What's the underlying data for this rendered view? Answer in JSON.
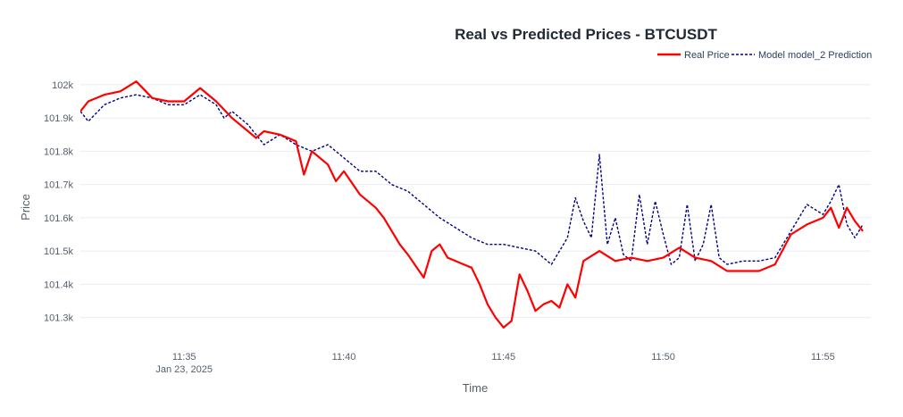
{
  "chart_data": {
    "type": "line",
    "title": "Real vs Predicted Prices - BTCUSDT",
    "xlabel": "Time",
    "ylabel": "Price",
    "x_ticks": [
      {
        "time": "11:35",
        "date": "Jan 23, 2025"
      },
      {
        "time": "11:40",
        "date": ""
      },
      {
        "time": "11:45",
        "date": ""
      },
      {
        "time": "11:50",
        "date": ""
      },
      {
        "time": "11:55",
        "date": ""
      }
    ],
    "y_ticks": [
      "101.3k",
      "101.4k",
      "101.5k",
      "101.6k",
      "101.7k",
      "101.8k",
      "101.9k",
      "102k"
    ],
    "xlim": [
      "11:31:45",
      "11:56:30"
    ],
    "ylim": [
      101240,
      102040
    ],
    "grid": true,
    "legend_position": "top-right",
    "series": [
      {
        "name": "Real Price",
        "color": "#ff0000",
        "dash": "solid",
        "x": [
          "11:31:45",
          "11:32:00",
          "11:32:30",
          "11:33:00",
          "11:33:30",
          "11:34:00",
          "11:34:30",
          "11:35:00",
          "11:35:30",
          "11:36:00",
          "11:36:30",
          "11:37:00",
          "11:37:15",
          "11:37:30",
          "11:38:00",
          "11:38:30",
          "11:38:45",
          "11:39:00",
          "11:39:30",
          "11:39:45",
          "11:40:00",
          "11:40:30",
          "11:41:00",
          "11:41:15",
          "11:41:45",
          "11:42:00",
          "11:42:30",
          "11:42:45",
          "11:43:00",
          "11:43:15",
          "11:43:45",
          "11:44:00",
          "11:44:15",
          "11:44:30",
          "11:44:45",
          "11:45:00",
          "11:45:15",
          "11:45:30",
          "11:45:45",
          "11:46:00",
          "11:46:15",
          "11:46:30",
          "11:46:45",
          "11:47:00",
          "11:47:15",
          "11:47:30",
          "11:48:00",
          "11:48:30",
          "11:49:00",
          "11:49:30",
          "11:50:00",
          "11:50:30",
          "11:51:00",
          "11:51:30",
          "11:52:00",
          "11:52:30",
          "11:53:00",
          "11:53:30",
          "11:54:00",
          "11:54:30",
          "11:55:00",
          "11:55:15",
          "11:55:30",
          "11:55:45",
          "11:56:00",
          "11:56:15"
        ],
        "values": [
          101920,
          101950,
          101970,
          101980,
          102010,
          101960,
          101950,
          101950,
          101990,
          101950,
          101900,
          101860,
          101840,
          101860,
          101850,
          101830,
          101730,
          101800,
          101760,
          101710,
          101740,
          101670,
          101630,
          101600,
          101520,
          101490,
          101420,
          101500,
          101520,
          101480,
          101460,
          101450,
          101400,
          101340,
          101300,
          101270,
          101290,
          101430,
          101380,
          101320,
          101340,
          101350,
          101330,
          101400,
          101360,
          101470,
          101500,
          101470,
          101480,
          101470,
          101480,
          101510,
          101480,
          101470,
          101440,
          101440,
          101440,
          101460,
          101550,
          101580,
          101600,
          101630,
          101570,
          101630,
          101590,
          101560
        ]
      },
      {
        "name": "Model model_2 Prediction",
        "color": "#000080",
        "dash": "dashed",
        "x": [
          "11:31:45",
          "11:32:00",
          "11:32:30",
          "11:33:00",
          "11:33:30",
          "11:34:00",
          "11:34:30",
          "11:35:00",
          "11:35:30",
          "11:36:00",
          "11:36:15",
          "11:36:30",
          "11:37:00",
          "11:37:30",
          "11:38:00",
          "11:38:30",
          "11:39:00",
          "11:39:30",
          "11:40:00",
          "11:40:30",
          "11:41:00",
          "11:41:30",
          "11:42:00",
          "11:42:30",
          "11:43:00",
          "11:43:30",
          "11:44:00",
          "11:44:30",
          "11:45:00",
          "11:45:30",
          "11:46:00",
          "11:46:30",
          "11:47:00",
          "11:47:15",
          "11:47:30",
          "11:47:45",
          "11:48:00",
          "11:48:15",
          "11:48:30",
          "11:48:45",
          "11:49:00",
          "11:49:15",
          "11:49:30",
          "11:49:45",
          "11:50:00",
          "11:50:15",
          "11:50:30",
          "11:50:45",
          "11:51:00",
          "11:51:15",
          "11:51:30",
          "11:51:45",
          "11:52:00",
          "11:52:30",
          "11:53:00",
          "11:53:30",
          "11:54:00",
          "11:54:30",
          "11:55:00",
          "11:55:15",
          "11:55:30",
          "11:55:45",
          "11:56:00",
          "11:56:15"
        ],
        "values": [
          101920,
          101890,
          101940,
          101960,
          101970,
          101960,
          101940,
          101940,
          101970,
          101940,
          101900,
          101920,
          101880,
          101820,
          101850,
          101820,
          101800,
          101820,
          101780,
          101740,
          101740,
          101700,
          101680,
          101640,
          101600,
          101570,
          101540,
          101520,
          101520,
          101510,
          101500,
          101460,
          101540,
          101660,
          101590,
          101540,
          101790,
          101520,
          101600,
          101490,
          101470,
          101670,
          101520,
          101650,
          101550,
          101460,
          101480,
          101640,
          101470,
          101520,
          101640,
          101480,
          101460,
          101470,
          101470,
          101480,
          101560,
          101640,
          101610,
          101650,
          101700,
          101580,
          101540,
          101580
        ]
      }
    ]
  }
}
